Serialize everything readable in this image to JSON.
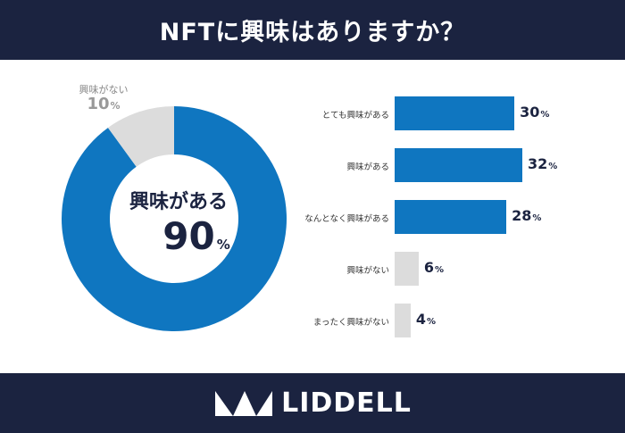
{
  "title": "NFTに興味はありますか？",
  "brand": "LIDDELL",
  "colors": {
    "header_bg": "#1b2340",
    "primary": "#0f76c0",
    "muted": "#dcdcdc",
    "value_text": "#1b2340",
    "small_value_text": "#999999"
  },
  "chart_data": [
    {
      "type": "pie",
      "style": "donut",
      "title": "",
      "slices": [
        {
          "label": "興味がある",
          "value": 90,
          "unit": "%"
        },
        {
          "label": "興味がない",
          "value": 10,
          "unit": "%"
        }
      ]
    },
    {
      "type": "bar",
      "orientation": "horizontal",
      "title": "",
      "unit": "%",
      "categories": [
        "とても興味がある",
        "興味がある",
        "なんとなく興味がある",
        "興味がない",
        "まったく興味がない"
      ],
      "values": [
        30,
        32,
        28,
        6,
        4
      ],
      "xlim": [
        0,
        32
      ]
    }
  ]
}
